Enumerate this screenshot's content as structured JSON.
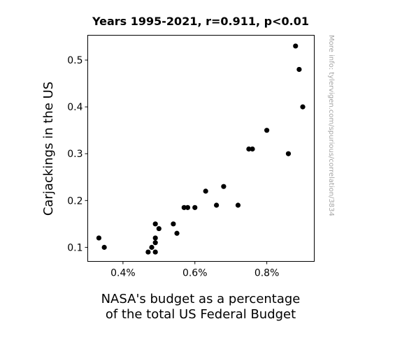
{
  "chart_data": {
    "type": "scatter",
    "title": "Years 1995-2021, r=0.911, p<0.01",
    "xlabel": [
      "NASA's budget as a percentage",
      "of the total US Federal Budget"
    ],
    "ylabel": "Carjackings in the US",
    "side_note": "More info: tylervigen.com/spurious/correlation/3834",
    "xlim": [
      0.302,
      0.932
    ],
    "ylim": [
      0.07,
      0.553
    ],
    "x_ticks": [
      0.4,
      0.6,
      0.8
    ],
    "x_tick_labels": [
      "0.4%",
      "0.6%",
      "0.8%"
    ],
    "y_ticks": [
      0.1,
      0.2,
      0.3,
      0.4,
      0.5
    ],
    "y_tick_labels": [
      "0.1",
      "0.2",
      "0.3",
      "0.4",
      "0.5"
    ],
    "grid": false,
    "marker_color": "#000000",
    "points": [
      {
        "x": 0.333,
        "y": 0.12
      },
      {
        "x": 0.348,
        "y": 0.1
      },
      {
        "x": 0.47,
        "y": 0.09
      },
      {
        "x": 0.48,
        "y": 0.1
      },
      {
        "x": 0.49,
        "y": 0.09
      },
      {
        "x": 0.49,
        "y": 0.11
      },
      {
        "x": 0.49,
        "y": 0.12
      },
      {
        "x": 0.49,
        "y": 0.15
      },
      {
        "x": 0.5,
        "y": 0.14
      },
      {
        "x": 0.54,
        "y": 0.15
      },
      {
        "x": 0.55,
        "y": 0.13
      },
      {
        "x": 0.57,
        "y": 0.185
      },
      {
        "x": 0.58,
        "y": 0.185
      },
      {
        "x": 0.6,
        "y": 0.185
      },
      {
        "x": 0.63,
        "y": 0.22
      },
      {
        "x": 0.66,
        "y": 0.19
      },
      {
        "x": 0.68,
        "y": 0.23
      },
      {
        "x": 0.72,
        "y": 0.19
      },
      {
        "x": 0.75,
        "y": 0.31
      },
      {
        "x": 0.76,
        "y": 0.31
      },
      {
        "x": 0.8,
        "y": 0.35
      },
      {
        "x": 0.86,
        "y": 0.3
      },
      {
        "x": 0.88,
        "y": 0.53
      },
      {
        "x": 0.89,
        "y": 0.48
      },
      {
        "x": 0.9,
        "y": 0.4
      }
    ]
  }
}
